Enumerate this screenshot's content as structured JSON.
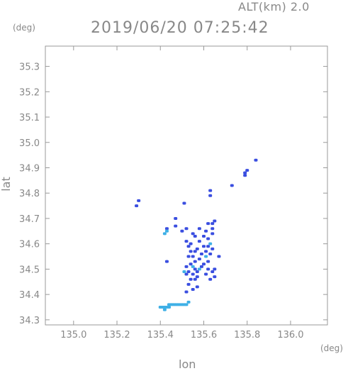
{
  "header": {
    "altitude_label": "ALT(km) 2.0",
    "title": "2019/06/20 07:25:42",
    "y_unit": "(deg)",
    "x_unit": "(deg)"
  },
  "chart_data": {
    "type": "scatter",
    "xlabel": "lon",
    "ylabel": "lat",
    "xlim": [
      134.87,
      136.17
    ],
    "ylim": [
      34.28,
      35.38
    ],
    "x_ticks": [
      135.0,
      135.2,
      135.4,
      135.6,
      135.8,
      136.0
    ],
    "x_tick_labels": [
      "135.0",
      "135.2",
      "135.4",
      "135.6",
      "135.8",
      "136.0"
    ],
    "y_ticks": [
      34.3,
      34.4,
      34.5,
      34.6,
      34.7,
      34.8,
      34.9,
      35.0,
      35.1,
      35.2,
      35.3
    ],
    "y_tick_labels": [
      "34.3",
      "34.4",
      "34.5",
      "34.6",
      "34.7",
      "34.8",
      "34.9",
      "35.0",
      "35.1",
      "35.2",
      "35.3"
    ],
    "colors": {
      "strong": "#3a4ee0",
      "weak": "#3fb0e6"
    },
    "series": [
      {
        "level": "strong",
        "points": [
          [
            135.84,
            34.93
          ],
          [
            135.8,
            34.89
          ],
          [
            135.79,
            34.88
          ],
          [
            135.79,
            34.87
          ],
          [
            135.73,
            34.83
          ],
          [
            135.63,
            34.81
          ],
          [
            135.63,
            34.79
          ],
          [
            135.3,
            34.77
          ],
          [
            135.29,
            34.75
          ],
          [
            135.51,
            34.76
          ],
          [
            135.65,
            34.69
          ],
          [
            135.64,
            34.68
          ],
          [
            135.62,
            34.68
          ],
          [
            135.47,
            34.67
          ],
          [
            135.43,
            34.66
          ],
          [
            135.5,
            34.65
          ],
          [
            135.52,
            34.66
          ],
          [
            135.55,
            34.64
          ],
          [
            135.58,
            34.66
          ],
          [
            135.61,
            34.65
          ],
          [
            135.64,
            34.66
          ],
          [
            135.6,
            34.63
          ],
          [
            135.62,
            34.62
          ],
          [
            135.64,
            34.64
          ],
          [
            135.56,
            34.63
          ],
          [
            135.58,
            34.61
          ],
          [
            135.52,
            34.61
          ],
          [
            135.54,
            34.6
          ],
          [
            135.6,
            34.59
          ],
          [
            135.62,
            34.59
          ],
          [
            135.64,
            34.58
          ],
          [
            135.63,
            34.56
          ],
          [
            135.53,
            34.59
          ],
          [
            135.57,
            34.58
          ],
          [
            135.54,
            34.57
          ],
          [
            135.56,
            34.57
          ],
          [
            135.59,
            34.56
          ],
          [
            135.61,
            34.57
          ],
          [
            135.53,
            34.55
          ],
          [
            135.55,
            34.55
          ],
          [
            135.56,
            34.53
          ],
          [
            135.54,
            34.52
          ],
          [
            135.52,
            34.51
          ],
          [
            135.56,
            34.5
          ],
          [
            135.53,
            34.49
          ],
          [
            135.55,
            34.48
          ],
          [
            135.57,
            34.49
          ],
          [
            135.52,
            34.48
          ],
          [
            135.54,
            34.46
          ],
          [
            135.56,
            34.46
          ],
          [
            135.6,
            34.52
          ],
          [
            135.62,
            34.5
          ],
          [
            135.64,
            34.49
          ],
          [
            135.65,
            34.5
          ],
          [
            135.61,
            34.48
          ],
          [
            135.59,
            34.51
          ],
          [
            135.57,
            34.47
          ],
          [
            135.53,
            34.44
          ],
          [
            135.55,
            34.42
          ],
          [
            135.57,
            34.43
          ],
          [
            135.52,
            34.41
          ],
          [
            135.43,
            34.53
          ],
          [
            135.67,
            34.55
          ],
          [
            135.62,
            34.53
          ],
          [
            135.65,
            34.47
          ],
          [
            135.63,
            34.46
          ],
          [
            135.47,
            34.7
          ],
          [
            135.58,
            34.54
          ]
        ]
      },
      {
        "level": "weak",
        "points": [
          [
            135.41,
            34.35
          ],
          [
            135.42,
            34.35
          ],
          [
            135.43,
            34.35
          ],
          [
            135.44,
            34.36
          ],
          [
            135.45,
            34.36
          ],
          [
            135.46,
            34.36
          ],
          [
            135.47,
            34.36
          ],
          [
            135.48,
            34.36
          ],
          [
            135.49,
            34.36
          ],
          [
            135.5,
            34.36
          ],
          [
            135.51,
            34.36
          ],
          [
            135.52,
            34.36
          ],
          [
            135.53,
            34.37
          ],
          [
            135.4,
            34.35
          ],
          [
            135.42,
            34.34
          ],
          [
            135.44,
            34.35
          ],
          [
            135.43,
            34.65
          ],
          [
            135.42,
            34.64
          ],
          [
            135.51,
            34.49
          ],
          [
            135.63,
            34.6
          ],
          [
            135.61,
            34.55
          ],
          [
            135.58,
            34.5
          ],
          [
            135.55,
            34.51
          ]
        ]
      }
    ]
  }
}
